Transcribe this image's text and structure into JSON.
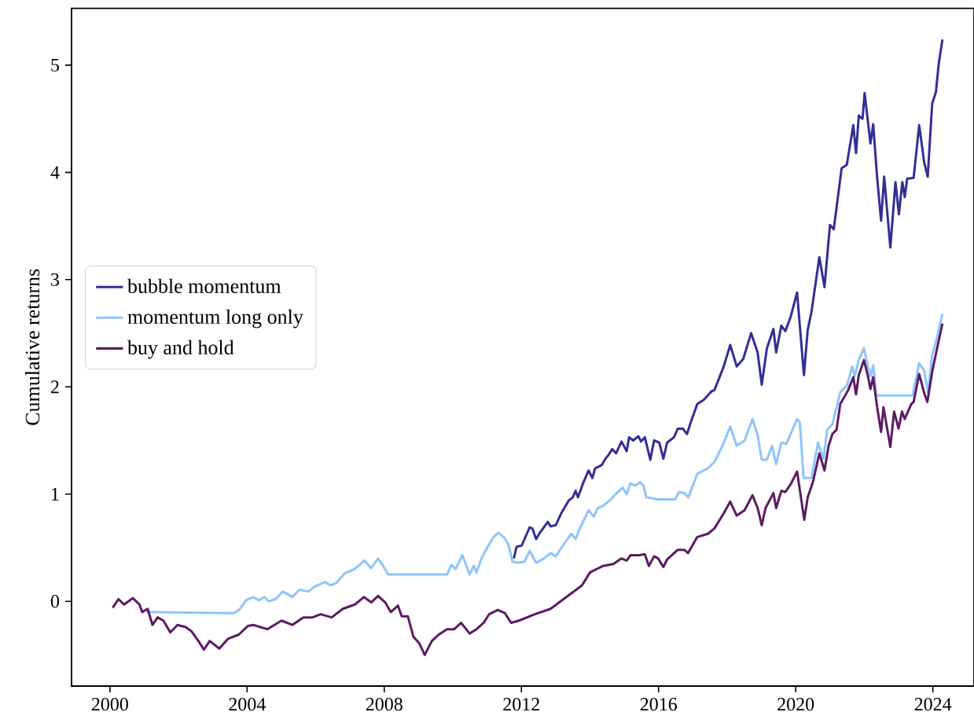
{
  "chart_data": {
    "type": "line",
    "ylabel": "Cumulative returns",
    "xlim": [
      1998.88,
      2025.2
    ],
    "ylim": [
      -0.79,
      5.53
    ],
    "xticks": [
      2000,
      2004,
      2008,
      2012,
      2016,
      2020,
      2024
    ],
    "yticks": [
      0,
      1,
      2,
      3,
      4,
      5
    ],
    "grid": false,
    "legend": "left",
    "line_style": "solid",
    "series": [
      {
        "name": "bubble momentum",
        "color": "#332f96",
        "x": [
          2011.78,
          2011.86,
          2012.01,
          2012.24,
          2012.32,
          2012.43,
          2012.54,
          2012.77,
          2012.85,
          2013.0,
          2013.16,
          2013.38,
          2013.5,
          2013.58,
          2013.65,
          2013.81,
          2013.96,
          2014.07,
          2014.15,
          2014.34,
          2014.45,
          2014.53,
          2014.65,
          2014.76,
          2014.92,
          2015.07,
          2015.14,
          2015.26,
          2015.41,
          2015.49,
          2015.6,
          2015.76,
          2015.87,
          2016.02,
          2016.14,
          2016.25,
          2016.45,
          2016.56,
          2016.71,
          2016.83,
          2016.94,
          2017.13,
          2017.32,
          2017.55,
          2017.63,
          2017.9,
          2018.09,
          2018.28,
          2018.47,
          2018.7,
          2018.89,
          2019.01,
          2019.16,
          2019.35,
          2019.43,
          2019.58,
          2019.7,
          2019.85,
          2020.04,
          2020.24,
          2020.35,
          2020.46,
          2020.69,
          2020.84,
          2021.0,
          2021.11,
          2021.34,
          2021.49,
          2021.68,
          2021.76,
          2021.84,
          2021.95,
          2022.01,
          2022.18,
          2022.26,
          2022.37,
          2022.49,
          2022.58,
          2022.76,
          2022.91,
          2023.01,
          2023.11,
          2023.18,
          2023.25,
          2023.44,
          2023.6,
          2023.75,
          2023.85,
          2023.98,
          2024.09,
          2024.17,
          2024.28
        ],
        "values": [
          0.4,
          0.51,
          0.52,
          0.69,
          0.68,
          0.58,
          0.64,
          0.74,
          0.7,
          0.71,
          0.82,
          0.94,
          0.97,
          1.03,
          0.97,
          1.11,
          1.22,
          1.15,
          1.24,
          1.27,
          1.33,
          1.36,
          1.42,
          1.38,
          1.49,
          1.4,
          1.53,
          1.5,
          1.54,
          1.49,
          1.53,
          1.32,
          1.5,
          1.48,
          1.33,
          1.48,
          1.53,
          1.61,
          1.61,
          1.56,
          1.67,
          1.84,
          1.88,
          1.96,
          1.97,
          2.19,
          2.39,
          2.19,
          2.26,
          2.5,
          2.32,
          2.02,
          2.36,
          2.54,
          2.32,
          2.57,
          2.52,
          2.65,
          2.88,
          2.11,
          2.53,
          2.7,
          3.21,
          2.93,
          3.51,
          3.47,
          4.04,
          4.07,
          4.44,
          4.18,
          4.53,
          4.5,
          4.74,
          4.27,
          4.45,
          3.97,
          3.55,
          3.96,
          3.3,
          3.91,
          3.61,
          3.91,
          3.77,
          3.94,
          3.95,
          4.44,
          4.09,
          3.96,
          4.64,
          4.75,
          5.01,
          5.24
        ]
      },
      {
        "name": "momentum long only",
        "color": "#8ec5fb",
        "x": [
          2001.06,
          2003.6,
          2003.77,
          2003.97,
          2004.18,
          2004.34,
          2004.51,
          2004.63,
          2004.83,
          2005.04,
          2005.16,
          2005.32,
          2005.53,
          2005.78,
          2005.98,
          2006.27,
          2006.43,
          2006.6,
          2006.84,
          2007.13,
          2007.42,
          2007.62,
          2007.82,
          2007.95,
          2008.11,
          2009.83,
          2009.96,
          2010.08,
          2010.28,
          2010.49,
          2010.61,
          2010.69,
          2010.85,
          2011.02,
          2011.19,
          2011.33,
          2011.51,
          2011.63,
          2011.74,
          2011.89,
          2012.09,
          2012.24,
          2012.43,
          2012.66,
          2012.85,
          2013.0,
          2013.23,
          2013.46,
          2013.58,
          2013.69,
          2013.96,
          2014.11,
          2014.23,
          2014.38,
          2014.61,
          2014.72,
          2014.95,
          2015.07,
          2015.18,
          2015.33,
          2015.45,
          2015.56,
          2015.64,
          2015.99,
          2016.48,
          2016.6,
          2016.75,
          2016.87,
          2017.13,
          2017.44,
          2017.63,
          2017.88,
          2018.09,
          2018.28,
          2018.51,
          2018.74,
          2018.89,
          2019.01,
          2019.16,
          2019.31,
          2019.43,
          2019.58,
          2019.73,
          2020.04,
          2020.12,
          2020.23,
          2020.46,
          2020.65,
          2020.81,
          2020.92,
          2021.07,
          2021.3,
          2021.49,
          2021.65,
          2021.72,
          2021.84,
          2021.99,
          2022.1,
          2022.18,
          2022.26,
          2022.35,
          2023.41,
          2023.6,
          2023.75,
          2023.86,
          2023.98,
          2024.09,
          2024.28
        ],
        "values": [
          -0.1,
          -0.11,
          -0.08,
          0.01,
          0.04,
          0.01,
          0.04,
          0.0,
          0.02,
          0.09,
          0.07,
          0.04,
          0.11,
          0.09,
          0.14,
          0.18,
          0.15,
          0.17,
          0.26,
          0.3,
          0.38,
          0.31,
          0.4,
          0.34,
          0.25,
          0.25,
          0.34,
          0.3,
          0.43,
          0.25,
          0.33,
          0.27,
          0.41,
          0.51,
          0.6,
          0.64,
          0.59,
          0.52,
          0.37,
          0.36,
          0.37,
          0.47,
          0.36,
          0.4,
          0.45,
          0.42,
          0.53,
          0.63,
          0.58,
          0.67,
          0.85,
          0.79,
          0.87,
          0.89,
          0.95,
          0.99,
          1.06,
          1.0,
          1.1,
          1.08,
          1.11,
          1.08,
          0.97,
          0.95,
          0.95,
          1.02,
          1.01,
          0.97,
          1.19,
          1.24,
          1.3,
          1.46,
          1.63,
          1.45,
          1.5,
          1.7,
          1.55,
          1.32,
          1.32,
          1.45,
          1.28,
          1.48,
          1.47,
          1.7,
          1.67,
          1.15,
          1.15,
          1.48,
          1.33,
          1.6,
          1.65,
          1.95,
          2.01,
          2.19,
          2.1,
          2.25,
          2.36,
          2.2,
          2.1,
          2.2,
          1.92,
          1.92,
          2.22,
          2.15,
          1.94,
          2.3,
          2.42,
          2.68
        ]
      },
      {
        "name": "buy and hold",
        "color": "#5e1a63",
        "x": [
          2000.08,
          2000.25,
          2000.41,
          2000.67,
          2000.86,
          2000.94,
          2001.1,
          2001.24,
          2001.39,
          2001.56,
          2001.76,
          2001.97,
          2002.21,
          2002.38,
          2002.58,
          2002.74,
          2002.91,
          2003.19,
          2003.44,
          2003.76,
          2004.02,
          2004.18,
          2004.59,
          2005.0,
          2005.32,
          2005.64,
          2005.9,
          2006.15,
          2006.47,
          2006.79,
          2007.14,
          2007.41,
          2007.62,
          2007.82,
          2008.03,
          2008.19,
          2008.4,
          2008.51,
          2008.69,
          2008.85,
          2009.02,
          2009.18,
          2009.39,
          2009.59,
          2009.83,
          2010.04,
          2010.24,
          2010.49,
          2010.69,
          2010.9,
          2011.06,
          2011.31,
          2011.52,
          2011.7,
          2011.93,
          2012.39,
          2012.85,
          2013.31,
          2013.77,
          2014.0,
          2014.38,
          2014.69,
          2014.92,
          2015.07,
          2015.18,
          2015.44,
          2015.6,
          2015.72,
          2015.87,
          2015.99,
          2016.14,
          2016.25,
          2016.56,
          2016.75,
          2016.86,
          2017.13,
          2017.44,
          2017.63,
          2017.9,
          2018.09,
          2018.28,
          2018.51,
          2018.74,
          2018.89,
          2019.01,
          2019.12,
          2019.35,
          2019.43,
          2019.58,
          2019.7,
          2019.85,
          2020.04,
          2020.25,
          2020.35,
          2020.5,
          2020.69,
          2020.84,
          2020.96,
          2021.07,
          2021.19,
          2021.3,
          2021.53,
          2021.68,
          2021.76,
          2021.84,
          2021.99,
          2022.1,
          2022.18,
          2022.26,
          2022.37,
          2022.49,
          2022.56,
          2022.76,
          2022.87,
          2023.0,
          2023.1,
          2023.18,
          2023.37,
          2023.44,
          2023.6,
          2023.75,
          2023.84,
          2023.98,
          2024.09,
          2024.28
        ],
        "values": [
          -0.06,
          0.02,
          -0.03,
          0.03,
          -0.03,
          -0.1,
          -0.07,
          -0.22,
          -0.15,
          -0.18,
          -0.29,
          -0.22,
          -0.24,
          -0.28,
          -0.37,
          -0.45,
          -0.37,
          -0.44,
          -0.35,
          -0.31,
          -0.23,
          -0.22,
          -0.26,
          -0.18,
          -0.22,
          -0.15,
          -0.15,
          -0.12,
          -0.15,
          -0.07,
          -0.03,
          0.04,
          -0.01,
          0.05,
          -0.01,
          -0.1,
          -0.04,
          -0.14,
          -0.14,
          -0.33,
          -0.39,
          -0.5,
          -0.37,
          -0.31,
          -0.26,
          -0.26,
          -0.2,
          -0.3,
          -0.26,
          -0.2,
          -0.12,
          -0.08,
          -0.11,
          -0.2,
          -0.18,
          -0.12,
          -0.07,
          0.04,
          0.15,
          0.27,
          0.33,
          0.35,
          0.4,
          0.38,
          0.43,
          0.43,
          0.44,
          0.33,
          0.42,
          0.4,
          0.32,
          0.39,
          0.48,
          0.48,
          0.45,
          0.6,
          0.63,
          0.68,
          0.82,
          0.93,
          0.8,
          0.85,
          0.99,
          0.87,
          0.71,
          0.87,
          1.01,
          0.87,
          1.03,
          1.02,
          1.09,
          1.21,
          0.76,
          0.97,
          1.11,
          1.38,
          1.22,
          1.45,
          1.56,
          1.6,
          1.84,
          1.97,
          2.09,
          1.93,
          2.11,
          2.25,
          2.11,
          1.98,
          2.09,
          1.82,
          1.58,
          1.81,
          1.44,
          1.77,
          1.61,
          1.77,
          1.7,
          1.84,
          1.86,
          2.12,
          1.94,
          1.86,
          2.14,
          2.31,
          2.59
        ]
      }
    ]
  }
}
